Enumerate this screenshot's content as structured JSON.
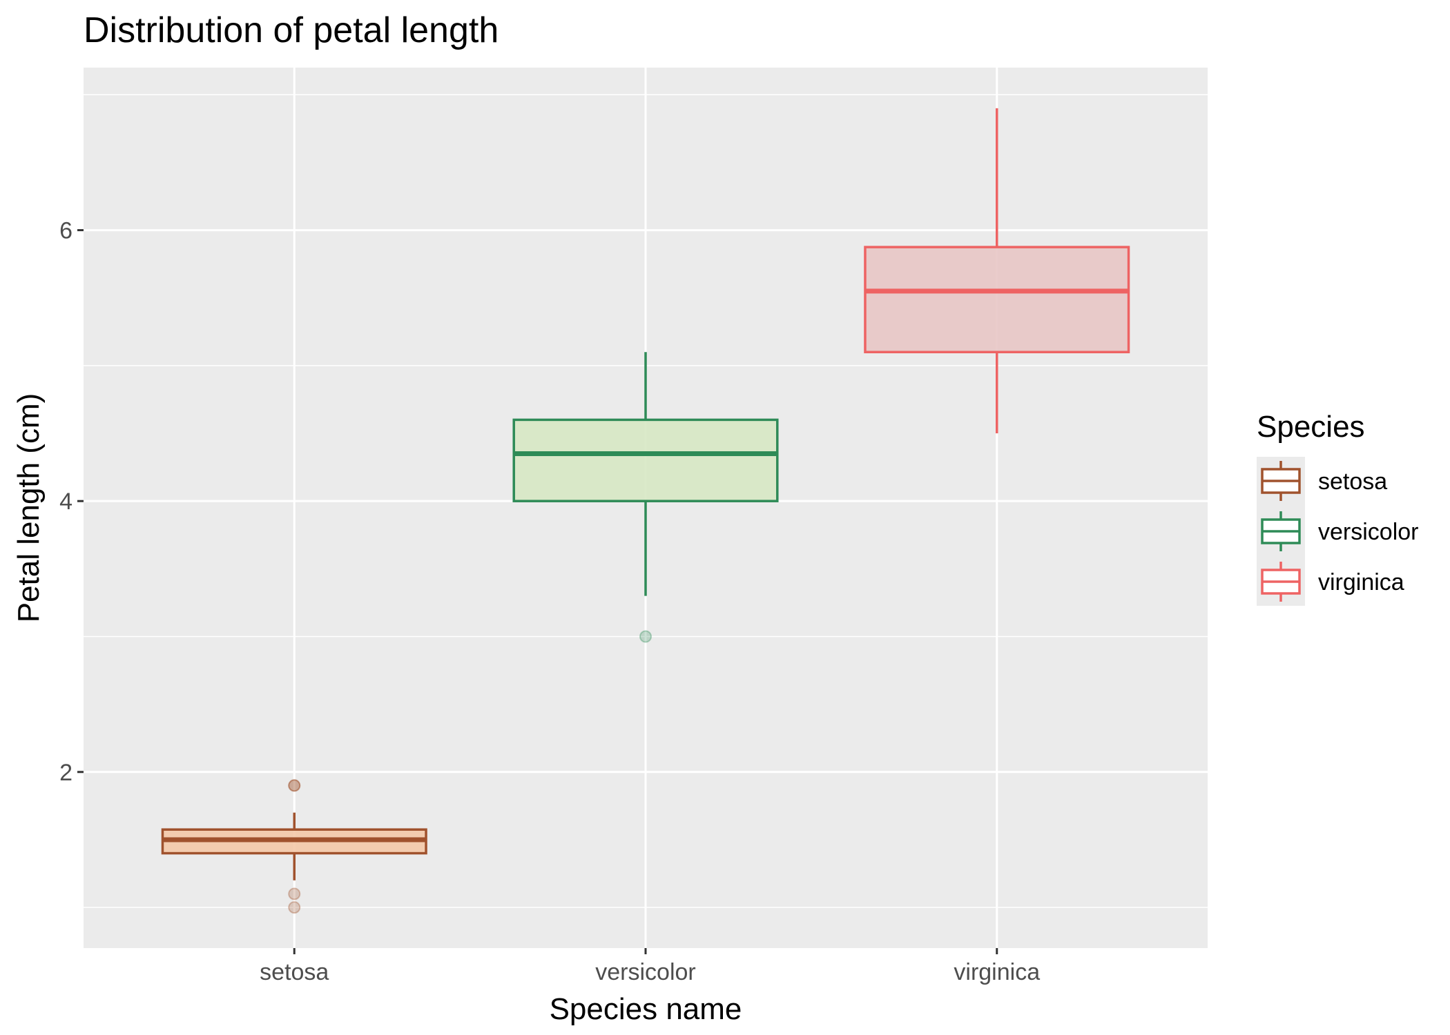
{
  "chart_data": {
    "type": "boxplot",
    "title": "Distribution of petal length",
    "xlabel": "Species name",
    "ylabel": "Petal length (cm)",
    "ylim": [
      0.7,
      7.2
    ],
    "yticks": [
      2,
      4,
      6
    ],
    "grid": true,
    "legend": {
      "title": "Species",
      "position": "right"
    },
    "categories": [
      "setosa",
      "versicolor",
      "virginica"
    ],
    "series": [
      {
        "name": "setosa",
        "stroke": "#A0522D",
        "fill": "#F4C9A8",
        "min": 1.2,
        "q1": 1.4,
        "median": 1.5,
        "q3": 1.575,
        "max": 1.7,
        "outliers": [
          1.9,
          1.9,
          1.1,
          1.0
        ]
      },
      {
        "name": "versicolor",
        "stroke": "#2E8B57",
        "fill": "#D7E8C4",
        "min": 3.3,
        "q1": 4.0,
        "median": 4.35,
        "q3": 4.6,
        "max": 5.1,
        "outliers": [
          3.0
        ]
      },
      {
        "name": "virginica",
        "stroke": "#EE6363",
        "fill": "#E8C6C5",
        "min": 4.5,
        "q1": 5.1,
        "median": 5.55,
        "q3": 5.875,
        "max": 6.9,
        "outliers": []
      }
    ]
  }
}
